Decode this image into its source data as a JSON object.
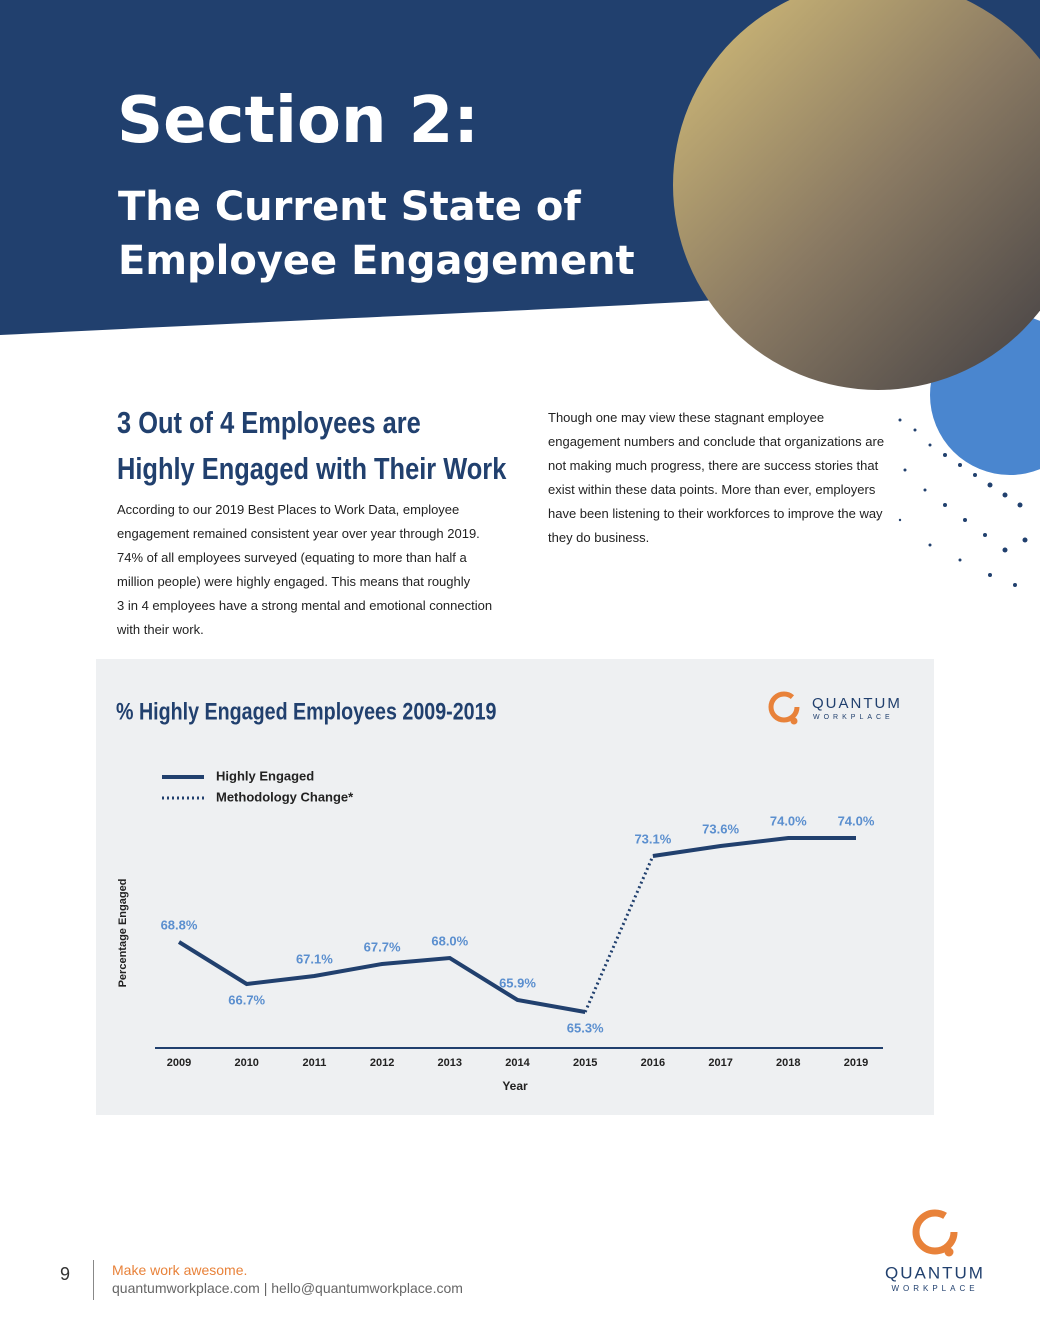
{
  "header": {
    "section": "Section 2:",
    "title_lines": [
      "The Current State of",
      "Employee Engagement"
    ]
  },
  "intro": {
    "heading_lines": [
      "3 Out of 4 Employees are",
      "Highly Engaged with Their Work"
    ],
    "left_lines": [
      "According to our 2019 Best Places to Work Data, employee",
      "engagement remained consistent year over year through 2019.",
      "74% of all employees surveyed (equating to more than half a",
      "million people) were highly engaged. This means that roughly",
      "3 in 4 employees have a strong mental and emotional connection",
      "with their work."
    ],
    "right_lines": [
      "Though one may view these stagnant employee",
      "engagement numbers and conclude that organizations are",
      "not making much progress, there are success stories that",
      "exist within these data points. More than ever, employers",
      "have been listening to their workforces to improve the way",
      "they do business."
    ]
  },
  "chart_logo": {
    "name": "QUANTUM",
    "sub": "WORKPLACE"
  },
  "chart_data": {
    "type": "line",
    "title": "% Highly Engaged Employees 2009-2019",
    "x_label": "Year",
    "y_label": "Percentage Engaged",
    "categories": [
      "2009",
      "2010",
      "2011",
      "2012",
      "2013",
      "2014",
      "2015",
      "2016",
      "2017",
      "2018",
      "2019"
    ],
    "series": [
      {
        "name": "Highly Engaged",
        "color": "#21406e",
        "values": [
          68.8,
          66.7,
          67.1,
          67.7,
          68.0,
          65.9,
          65.3,
          73.1,
          73.6,
          74.0,
          74.0
        ],
        "value_labels": [
          "68.8%",
          "66.7%",
          "67.1%",
          "67.7%",
          "68.0%",
          "65.9%",
          "65.3%",
          "73.1%",
          "73.6%",
          "74.0%",
          "74.0%"
        ]
      }
    ],
    "methodology_change": {
      "name": "Methodology Change*",
      "between": [
        "2015",
        "2016"
      ]
    },
    "label_color": "#5b8fcf",
    "ylim": [
      63.5,
      78
    ]
  },
  "footer": {
    "page": "9",
    "tagline": "Make work awesome.",
    "contact": "quantumworkplace.com | hello@quantumworkplace.com",
    "logo_name": "QUANTUM",
    "logo_sub": "WORKPLACE"
  }
}
